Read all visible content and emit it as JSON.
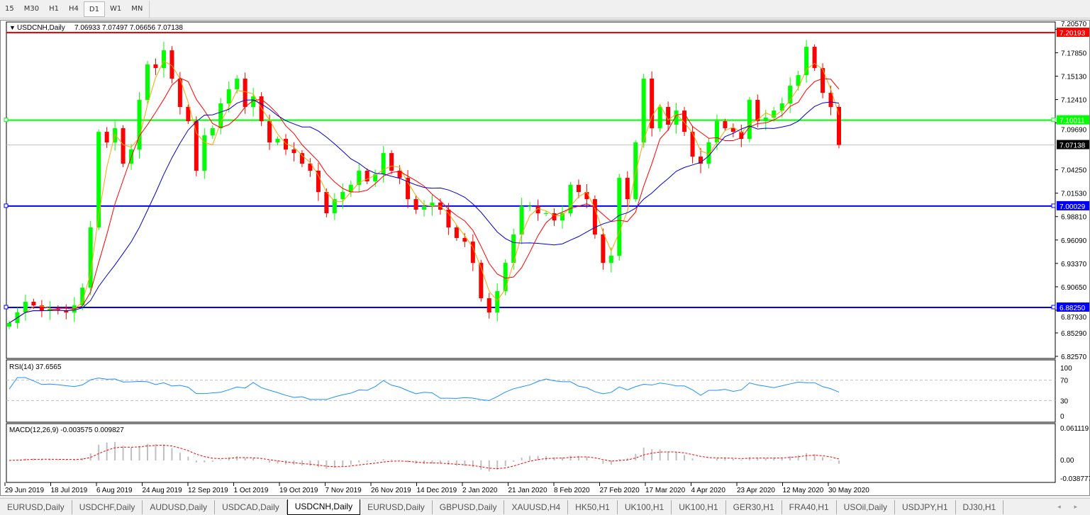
{
  "timeframes": [
    {
      "label": "15"
    },
    {
      "label": "M30"
    },
    {
      "label": "H1"
    },
    {
      "label": "H4"
    },
    {
      "label": "D1",
      "active": true
    },
    {
      "label": "W1"
    },
    {
      "label": "MN"
    }
  ],
  "chart_title": "USDCNH,Daily",
  "ohlc": "7.06933 7.07497 7.06656 7.07138",
  "colors": {
    "bull": "#00ff00",
    "bear": "#ff0000",
    "ma_fast": "#ffa500",
    "ma_mid": "#ff0000",
    "ma_slow": "#0000cd",
    "rsi": "#1e90ff",
    "macd_signal": "#ff0000",
    "macd_hist": "#c0c0c0"
  },
  "price_axis": {
    "ticks": [
      "7.20570",
      "7.17850",
      "7.15130",
      "7.12410",
      "7.09690",
      "7.04250",
      "7.01530",
      "6.98810",
      "6.96090",
      "6.93370",
      "6.90650",
      "6.87930",
      "6.85290",
      "6.82570"
    ],
    "min": 6.8257,
    "max": 7.2057
  },
  "levels": [
    {
      "label": "7.20193",
      "value": 7.20193,
      "color": "#ff0000",
      "name": "red-resistance-line"
    },
    {
      "label": "7.10011",
      "value": 7.10011,
      "color": "#00ff00",
      "name": "green-level-line"
    },
    {
      "label": "7.00029",
      "value": 7.00029,
      "color": "#0000ff",
      "name": "blue-level-line-upper"
    },
    {
      "label": "6.88250",
      "value": 6.8825,
      "color": "#0000ff",
      "name": "blue-level-line-lower"
    }
  ],
  "current_price": {
    "label": "7.07138",
    "value": 7.07138
  },
  "rsi": {
    "label": "RSI(14) 37.6565",
    "ticks": [
      "100",
      "70",
      "30",
      "0"
    ]
  },
  "macd": {
    "label": "MACD(12,26,9) -0.003575 0.009827",
    "ticks": [
      "0.061119",
      "0.00",
      "-0.038777"
    ]
  },
  "dates": [
    "29 Jun 2019",
    "18 Jul 2019",
    "6 Aug 2019",
    "24 Aug 2019",
    "12 Sep 2019",
    "1 Oct 2019",
    "19 Oct 2019",
    "7 Nov 2019",
    "26 Nov 2019",
    "14 Dec 2019",
    "2 Jan 2020",
    "21 Jan 2020",
    "8 Feb 2020",
    "27 Feb 2020",
    "17 Mar 2020",
    "4 Apr 2020",
    "23 Apr 2020",
    "12 May 2020",
    "30 May 2020"
  ],
  "chart_data": {
    "type": "candlestick",
    "symbol": "USDCNH",
    "period": "Daily",
    "x_range": [
      "29 Jun 2019",
      "30 May 2020"
    ],
    "ylim": [
      6.8257,
      7.2057
    ],
    "close": [
      6.8644,
      6.8767,
      6.8891,
      6.8849,
      6.8784,
      6.8808,
      6.8792,
      6.8767,
      6.8849,
      6.9055,
      6.9755,
      7.0866,
      7.0743,
      7.0908,
      7.0496,
      7.0661,
      7.1237,
      7.1649,
      7.1607,
      7.1813,
      7.1484,
      7.1155,
      7.099,
      7.0414,
      7.0825,
      7.0908,
      7.1196,
      7.136,
      7.1484,
      7.1155,
      7.1278,
      7.099,
      7.0743,
      7.0784,
      7.0661,
      7.0619,
      7.0496,
      7.0414,
      7.0167,
      6.992,
      7.0084,
      7.0167,
      7.0249,
      7.0414,
      7.029,
      7.0372,
      7.0619,
      7.0414,
      7.0331,
      7.0084,
      6.9961,
      7.0002,
      7.0043,
      6.9961,
      6.9755,
      6.9632,
      6.959,
      6.9343,
      6.8932,
      6.8767,
      6.9014,
      6.9343,
      6.9673,
      7.0002,
      7.0002,
      6.992,
      6.992,
      6.9837,
      6.992,
      7.0249,
      7.0167,
      7.0084,
      6.9673,
      6.9343,
      6.9426,
      7.0331,
      7.0084,
      7.0743,
      7.1484,
      7.0908,
      7.1155,
      7.0949,
      7.1113,
      7.0866,
      7.0578,
      7.0496,
      7.0743,
      7.099,
      7.0908,
      7.0866,
      7.0784,
      7.1237,
      7.099,
      7.1031,
      7.1113,
      7.1196,
      7.1402,
      7.1525,
      7.1854,
      7.1607,
      7.1319,
      7.1155,
      7.0714
    ]
  },
  "tabs": [
    {
      "label": "EURUSD,Daily"
    },
    {
      "label": "USDCHF,Daily"
    },
    {
      "label": "AUDUSD,Daily"
    },
    {
      "label": "USDCAD,Daily"
    },
    {
      "label": "USDCNH,Daily",
      "active": true
    },
    {
      "label": "EURUSD,Daily"
    },
    {
      "label": "GBPUSD,Daily"
    },
    {
      "label": "XAUUSD,H4"
    },
    {
      "label": "HK50,H1"
    },
    {
      "label": "UK100,H1"
    },
    {
      "label": "UK100,H1"
    },
    {
      "label": "GER30,H1"
    },
    {
      "label": "FRA40,H1"
    },
    {
      "label": "USOil,Daily"
    },
    {
      "label": "USDJPY,H1"
    },
    {
      "label": "DJ30,H1"
    }
  ],
  "tab_scroll": "◂ ▸"
}
